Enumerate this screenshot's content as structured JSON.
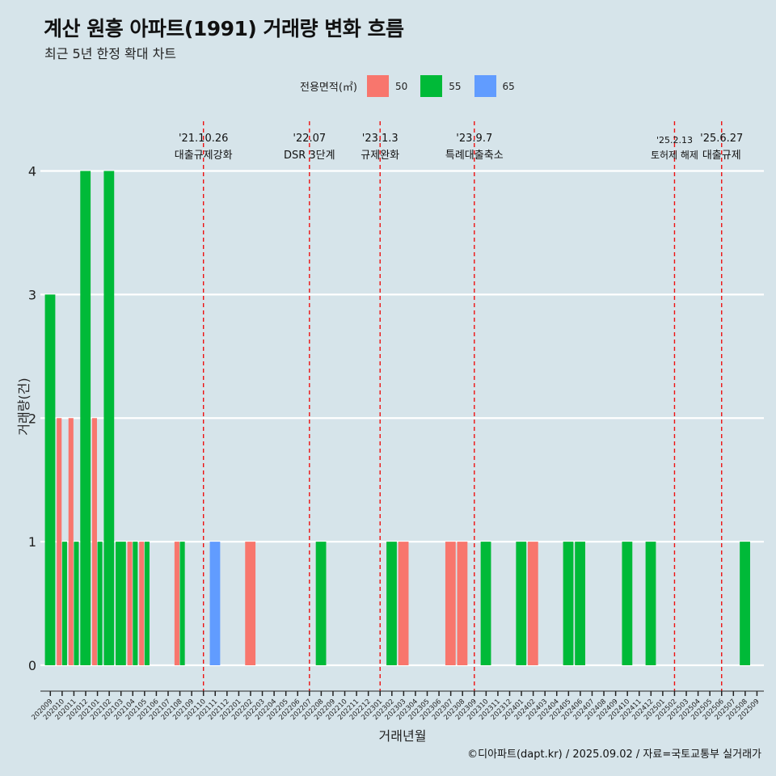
{
  "title": "계산 원흥 아파트(1991) 거래량 변화 흐름",
  "subtitle": "최근 5년 한정 확대 차트",
  "caption": "©디아파트(dapt.kr) / 2025.09.02 / 자료=국토교통부 실거래가",
  "legend": {
    "title": "전용면적(㎡)",
    "items": [
      {
        "label": "50",
        "color": "#f8766d"
      },
      {
        "label": "55",
        "color": "#00ba38"
      },
      {
        "label": "65",
        "color": "#619cff"
      }
    ]
  },
  "chart_data": {
    "type": "bar",
    "xlabel": "거래년월",
    "ylabel": "거래량(건)",
    "ylim": [
      0,
      4
    ],
    "yticks": [
      0,
      1,
      2,
      3,
      4
    ],
    "categories": [
      "202009",
      "202010",
      "202011",
      "202012",
      "202101",
      "202102",
      "202103",
      "202104",
      "202105",
      "202106",
      "202107",
      "202108",
      "202109",
      "202110",
      "202111",
      "202112",
      "202201",
      "202202",
      "202203",
      "202204",
      "202205",
      "202206",
      "202207",
      "202208",
      "202209",
      "202210",
      "202211",
      "202212",
      "202301",
      "202302",
      "202303",
      "202304",
      "202305",
      "202306",
      "202307",
      "202308",
      "202309",
      "202310",
      "202311",
      "202312",
      "202401",
      "202402",
      "202403",
      "202404",
      "202405",
      "202406",
      "202407",
      "202408",
      "202409",
      "202410",
      "202411",
      "202412",
      "202501",
      "202502",
      "202503",
      "202504",
      "202505",
      "202506",
      "202507",
      "202508",
      "202509"
    ],
    "series": [
      {
        "name": "50",
        "color": "#f8766d",
        "values": {
          "202010": 2,
          "202011": 2,
          "202101": 2,
          "202104": 1,
          "202105": 1,
          "202108": 1,
          "202202": 1,
          "202303": 1,
          "202307": 1,
          "202308": 1,
          "202402": 1
        }
      },
      {
        "name": "55",
        "color": "#00ba38",
        "values": {
          "202009": 3,
          "202010": 1,
          "202011": 1,
          "202012": 4,
          "202101": 1,
          "202102": 4,
          "202103": 1,
          "202104": 1,
          "202105": 1,
          "202108": 1,
          "202208": 1,
          "202302": 1,
          "202310": 1,
          "202401": 1,
          "202405": 1,
          "202406": 1,
          "202410": 1,
          "202412": 1,
          "202508": 1
        }
      },
      {
        "name": "65",
        "color": "#619cff",
        "values": {
          "202111": 1
        }
      }
    ],
    "events": [
      {
        "date": "'21.10.26",
        "label": "대출규제강화",
        "pos": 13.5
      },
      {
        "date": "'22.07",
        "label": "DSR 3단계",
        "pos": 22.5
      },
      {
        "date": "'23.1.3",
        "label": "규제완화",
        "pos": 28.5
      },
      {
        "date": "'23.9.7",
        "label": "특례대출축소",
        "pos": 36.5
      },
      {
        "date": "'25.2.13",
        "label": "토허제 해제",
        "pos": 53.5
      },
      {
        "date": "'25.6.27",
        "label": "대출규제",
        "pos": 57.5
      }
    ]
  }
}
